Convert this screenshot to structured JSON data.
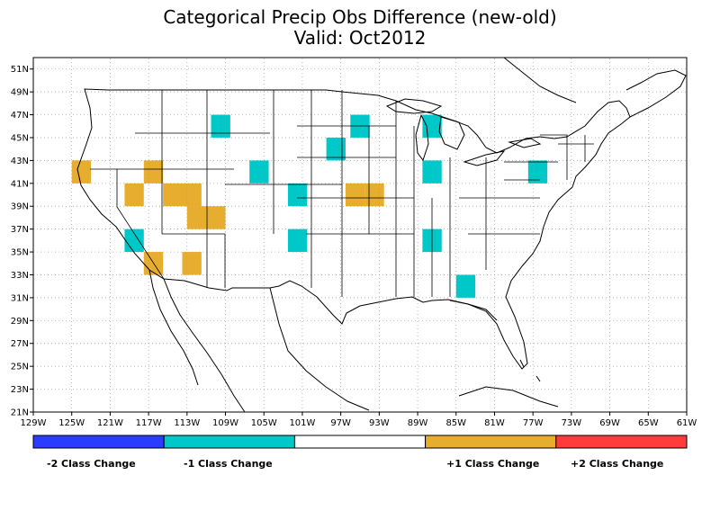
{
  "title": "Categorical Precip Obs Difference (new-old)",
  "subtitle": "Valid: Oct2012",
  "map": {
    "lon_range": [
      -129,
      -61
    ],
    "lat_range": [
      21,
      52
    ],
    "grid": true,
    "lat_labels": [
      "21N",
      "23N",
      "25N",
      "27N",
      "29N",
      "31N",
      "33N",
      "35N",
      "37N",
      "39N",
      "41N",
      "43N",
      "45N",
      "47N",
      "49N",
      "51N"
    ],
    "lon_labels": [
      "129W",
      "125W",
      "121W",
      "117W",
      "113W",
      "109W",
      "105W",
      "101W",
      "97W",
      "93W",
      "89W",
      "85W",
      "81W",
      "77W",
      "73W",
      "69W",
      "65W",
      "61W"
    ]
  },
  "chart_data": {
    "type": "heatmap",
    "title": "Categorical Precip Obs Difference (new-old)",
    "subtitle": "Valid: Oct2012",
    "xlabel": "",
    "ylabel": "",
    "xlim": [
      -129,
      -61
    ],
    "ylim": [
      21,
      52
    ],
    "grid": true,
    "categories": [
      {
        "value": -2,
        "label": "-2 Class Change",
        "color": "#2a3cff"
      },
      {
        "value": -1,
        "label": "-1 Class Change",
        "color": "#00c8c8"
      },
      {
        "value": 0,
        "label": "",
        "color": "#ffffff"
      },
      {
        "value": 1,
        "label": "+1 Class Change",
        "color": "#e6ad2e"
      },
      {
        "value": 2,
        "label": "+2 Class Change",
        "color": "#ff3b3b"
      }
    ],
    "cells": [
      {
        "lon": -109.5,
        "lat": 46.0,
        "value": -1
      },
      {
        "lon": -95.0,
        "lat": 46.0,
        "value": -1
      },
      {
        "lon": -87.5,
        "lat": 46.0,
        "value": -1
      },
      {
        "lon": -97.5,
        "lat": 44.0,
        "value": -1
      },
      {
        "lon": -124.0,
        "lat": 42.0,
        "value": 1
      },
      {
        "lon": -116.5,
        "lat": 42.0,
        "value": 1
      },
      {
        "lon": -105.5,
        "lat": 42.0,
        "value": -1
      },
      {
        "lon": -87.5,
        "lat": 42.0,
        "value": -1
      },
      {
        "lon": -76.5,
        "lat": 42.0,
        "value": -1
      },
      {
        "lon": -118.5,
        "lat": 40.0,
        "value": 1
      },
      {
        "lon": -114.5,
        "lat": 40.0,
        "value": 1
      },
      {
        "lon": -112.5,
        "lat": 40.0,
        "value": 1
      },
      {
        "lon": -101.5,
        "lat": 40.0,
        "value": -1
      },
      {
        "lon": -95.5,
        "lat": 40.0,
        "value": 1
      },
      {
        "lon": -93.5,
        "lat": 40.0,
        "value": 1
      },
      {
        "lon": -112.0,
        "lat": 38.0,
        "value": 1
      },
      {
        "lon": -110.0,
        "lat": 38.0,
        "value": 1
      },
      {
        "lon": -118.5,
        "lat": 36.0,
        "value": -1
      },
      {
        "lon": -101.5,
        "lat": 36.0,
        "value": -1
      },
      {
        "lon": -87.5,
        "lat": 36.0,
        "value": -1
      },
      {
        "lon": -116.5,
        "lat": 34.0,
        "value": 1
      },
      {
        "lon": -112.5,
        "lat": 34.0,
        "value": 1
      },
      {
        "lon": -84.0,
        "lat": 32.0,
        "value": -1
      }
    ],
    "cell_size_deg": [
      2,
      2
    ]
  }
}
